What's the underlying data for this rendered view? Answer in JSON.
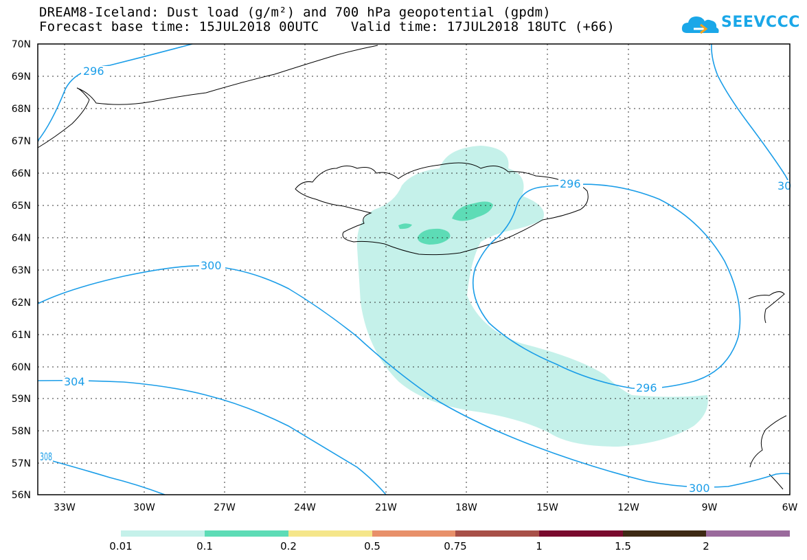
{
  "title_line1": "DREAM8-Iceland: Dust load (g/m²) and 700 hPa geopotential (gpdm)",
  "title_line2": "Forecast base time: 15JUL2018 00UTC    Valid time: 17JUL2018 18UTC (+66)",
  "logo_text": "SEEVCCC",
  "colors": {
    "contour": "#1a9de8",
    "dust_low": "#c5f1ea",
    "dust_mid": "#5ddcb6"
  },
  "lat_labels": [
    "70N",
    "69N",
    "68N",
    "67N",
    "66N",
    "65N",
    "64N",
    "63N",
    "62N",
    "61N",
    "60N",
    "59N",
    "58N",
    "57N",
    "56N"
  ],
  "lon_labels": [
    "33W",
    "30W",
    "27W",
    "24W",
    "21W",
    "18W",
    "15W",
    "12W",
    "9W",
    "6W"
  ],
  "contour_labels": [
    "296",
    "300",
    "304",
    "296",
    "296",
    "300",
    "308",
    "30"
  ],
  "colorbar": {
    "colors": [
      "#c5f1ea",
      "#5ddcb6",
      "#f5e68a",
      "#e8906a",
      "#a85048",
      "#7a0a2e",
      "#3e2a14",
      "#9a6a9c"
    ],
    "labels": [
      "0.01",
      "0.1",
      "0.2",
      "0.5",
      "0.75",
      "1",
      "1.5",
      "2"
    ]
  }
}
